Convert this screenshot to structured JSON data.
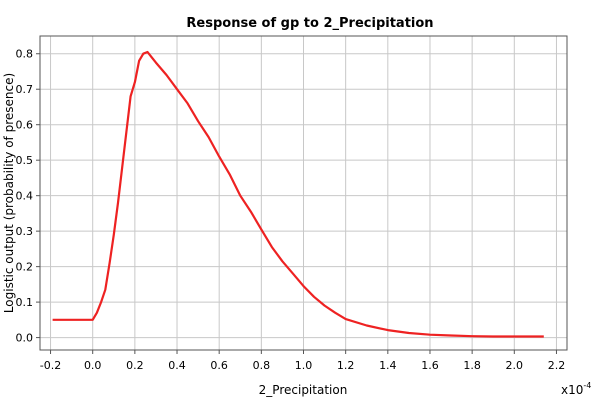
{
  "chart_data": {
    "type": "line",
    "title": "Response of gp to 2_Precipitation",
    "xlabel": "2_Precipitation",
    "ylabel": "Logistic output (probability of presence)",
    "x_multiplier_base": "x10",
    "x_multiplier_exp": "-4",
    "xlim": [
      -0.25,
      2.25
    ],
    "ylim": [
      -0.035,
      0.85
    ],
    "xticks": [
      -0.2,
      0.0,
      0.2,
      0.4,
      0.6,
      0.8,
      1.0,
      1.2,
      1.4,
      1.6,
      1.8,
      2.0,
      2.2
    ],
    "xtick_labels": [
      "-0.2",
      "0.0",
      "0.2",
      "0.4",
      "0.6",
      "0.8",
      "1.0",
      "1.2",
      "1.4",
      "1.6",
      "1.8",
      "2.0",
      "2.2"
    ],
    "yticks": [
      0.0,
      0.1,
      0.2,
      0.3,
      0.4,
      0.5,
      0.6,
      0.7,
      0.8
    ],
    "ytick_labels": [
      "0.0",
      "0.1",
      "0.2",
      "0.3",
      "0.4",
      "0.5",
      "0.6",
      "0.7",
      "0.8"
    ],
    "grid": true,
    "colors": {
      "line": "#ee2222",
      "grid": "#c8c8c8"
    },
    "series": [
      {
        "x": [
          -0.19,
          -0.1,
          -0.05,
          0.0,
          0.02,
          0.04,
          0.06,
          0.08,
          0.1,
          0.12,
          0.14,
          0.16,
          0.18,
          0.2,
          0.22,
          0.24,
          0.26,
          0.28,
          0.3,
          0.35,
          0.4,
          0.45,
          0.5,
          0.55,
          0.6,
          0.65,
          0.7,
          0.75,
          0.8,
          0.85,
          0.9,
          0.95,
          1.0,
          1.05,
          1.1,
          1.15,
          1.2,
          1.3,
          1.4,
          1.5,
          1.6,
          1.7,
          1.8,
          1.9,
          2.0,
          2.1,
          2.14
        ],
        "y": [
          0.05,
          0.05,
          0.05,
          0.05,
          0.07,
          0.1,
          0.135,
          0.21,
          0.29,
          0.38,
          0.48,
          0.58,
          0.68,
          0.72,
          0.78,
          0.8,
          0.805,
          0.79,
          0.775,
          0.74,
          0.7,
          0.66,
          0.61,
          0.565,
          0.51,
          0.46,
          0.4,
          0.355,
          0.305,
          0.255,
          0.215,
          0.18,
          0.145,
          0.115,
          0.09,
          0.07,
          0.052,
          0.034,
          0.021,
          0.013,
          0.008,
          0.006,
          0.004,
          0.003,
          0.003,
          0.003,
          0.003
        ]
      }
    ]
  }
}
